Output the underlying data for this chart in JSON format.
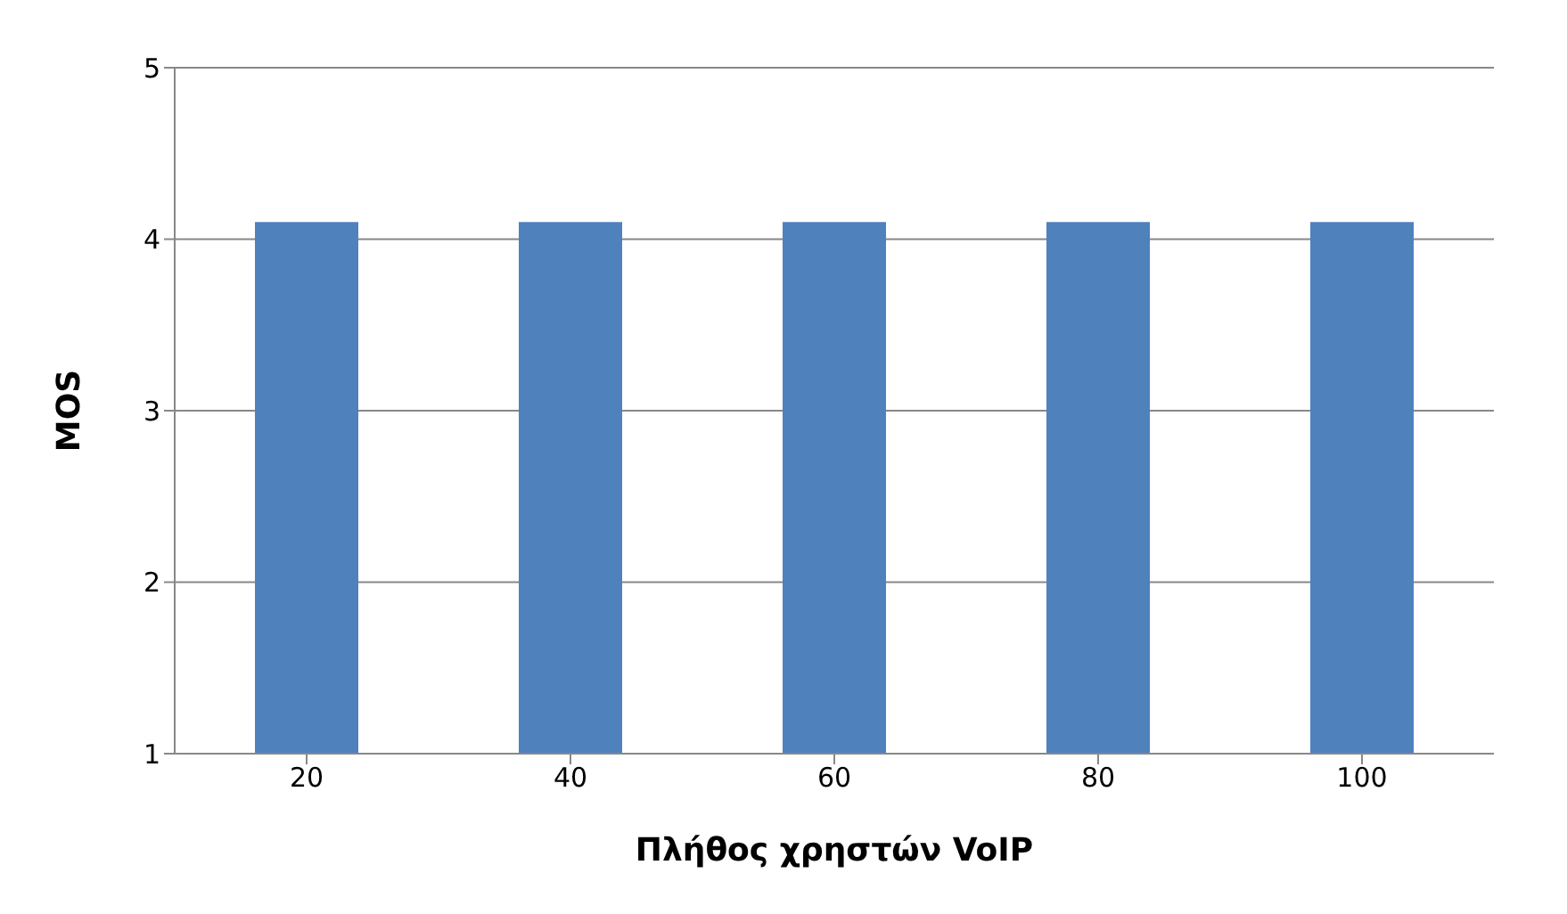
{
  "chart_data": {
    "type": "bar",
    "xlabel": "Πλήθος χρηστών VoIP",
    "ylabel": "MOS",
    "categories": [
      "20",
      "40",
      "60",
      "80",
      "100"
    ],
    "values": [
      4.1,
      4.1,
      4.1,
      4.1,
      4.1
    ],
    "color": "#4f81bd",
    "ylim": [
      1,
      5
    ],
    "yticks": [
      1,
      2,
      3,
      4,
      5
    ],
    "grid": "y"
  }
}
